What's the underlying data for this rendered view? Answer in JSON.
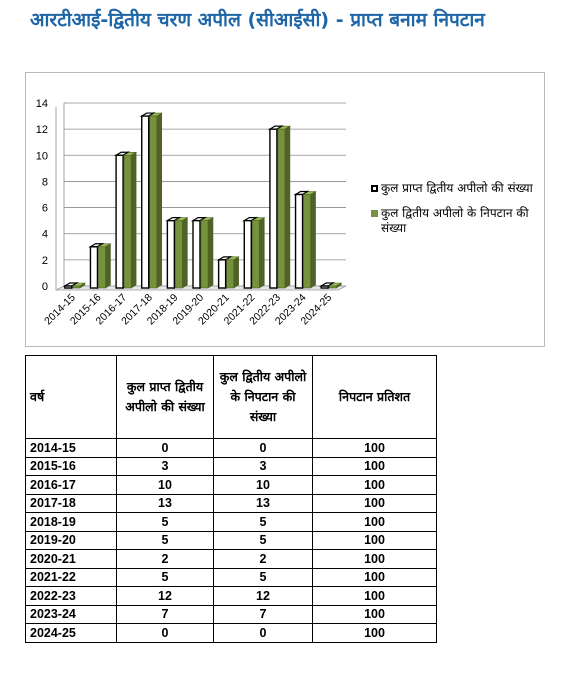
{
  "title": "आरटीआई-द्वितीय चरण अपील (सीआईसी) - प्राप्त बनाम निपटान",
  "colors": {
    "title": "#1f66a6",
    "received": "#ffffff",
    "disposed": "#76923c",
    "bar_edge": "#000000"
  },
  "chart_data": {
    "type": "bar",
    "categories": [
      "2014-15",
      "2015-16",
      "2016-17",
      "2017-18",
      "2018-19",
      "2019-20",
      "2020-21",
      "2021-22",
      "2022-23",
      "2023-24",
      "2024-25"
    ],
    "series": [
      {
        "name": "कुल प्राप्त द्वितीय अपीलो की संख्या",
        "values": [
          0,
          3,
          10,
          13,
          5,
          5,
          2,
          5,
          12,
          7,
          0
        ]
      },
      {
        "name": "कुल द्वितीय अपीलो के निपटान की संख्या",
        "values": [
          0,
          3,
          10,
          13,
          5,
          5,
          2,
          5,
          12,
          7,
          0
        ]
      }
    ],
    "yticks": [
      "0",
      "2",
      "4",
      "6",
      "8",
      "10",
      "12",
      "14"
    ],
    "ylim": [
      0,
      14
    ],
    "grid": true,
    "legend": "right"
  },
  "table": {
    "headers": [
      "वर्ष",
      "कुल प्राप्त द्वितीय अपीलो की संख्या",
      "कुल द्वितीय अपीलो के निपटान की संख्या",
      "निपटान प्रतिशत"
    ],
    "rows": [
      [
        "2014-15",
        "0",
        "0",
        "100"
      ],
      [
        "2015-16",
        "3",
        "3",
        "100"
      ],
      [
        "2016-17",
        "10",
        "10",
        "100"
      ],
      [
        "2017-18",
        "13",
        "13",
        "100"
      ],
      [
        "2018-19",
        "5",
        "5",
        "100"
      ],
      [
        "2019-20",
        "5",
        "5",
        "100"
      ],
      [
        "2020-21",
        "2",
        "2",
        "100"
      ],
      [
        "2021-22",
        "5",
        "5",
        "100"
      ],
      [
        "2022-23",
        "12",
        "12",
        "100"
      ],
      [
        "2023-24",
        "7",
        "7",
        "100"
      ],
      [
        "2024-25",
        "0",
        "0",
        "100"
      ]
    ]
  }
}
